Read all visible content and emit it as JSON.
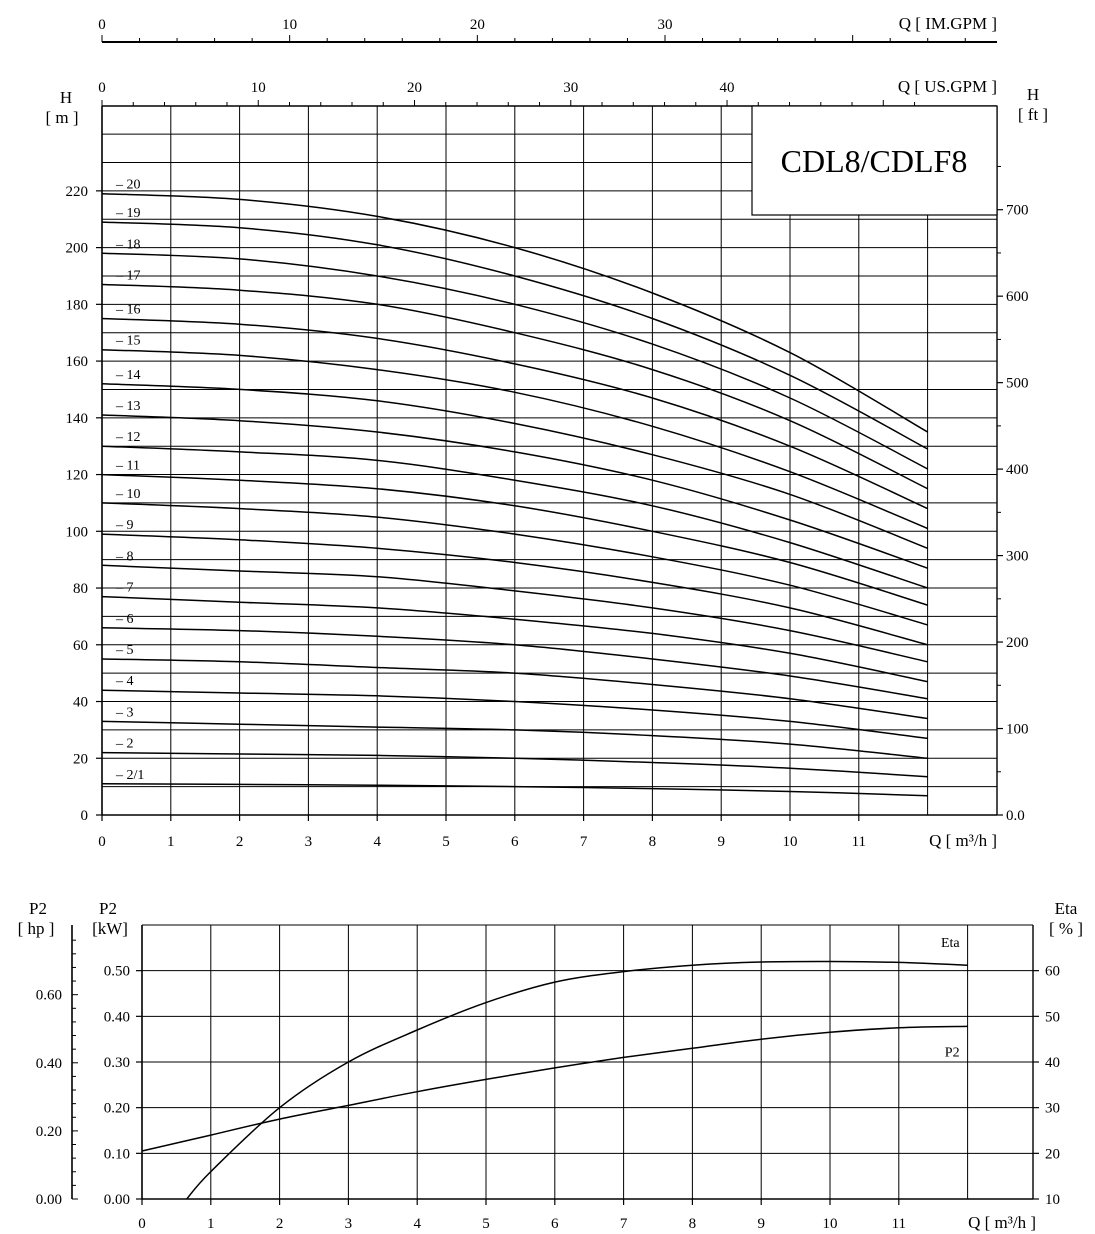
{
  "chart_data": [
    {
      "type": "line",
      "title": "CDL8/CDLF8",
      "xlabel": "Q [ m³/h ]",
      "x_ticks": [
        0,
        1,
        2,
        3,
        4,
        5,
        6,
        7,
        8,
        9,
        10,
        11
      ],
      "xlim": [
        0,
        13
      ],
      "ylabel_left": "H [ m ]",
      "ylabel_left_head": "H",
      "ylabel_left_unit": "[ m ]",
      "ylim_m": [
        0,
        245
      ],
      "y_ticks_m": [
        0,
        20,
        40,
        60,
        80,
        100,
        120,
        140,
        160,
        180,
        200,
        220
      ],
      "ylabel_right_head": "H",
      "ylabel_right_unit": "[ ft ]",
      "y_ticks_ft": [
        "0.0",
        "100",
        "200",
        "300",
        "400",
        "500",
        "600",
        "700"
      ],
      "top_axis_us": {
        "label": "Q [ US.GPM ]",
        "ticks": [
          "0",
          "10",
          "20",
          "30",
          "40"
        ]
      },
      "top_axis_im": {
        "label": "Q [ IM.GPM ]",
        "ticks": [
          "0",
          "10",
          "20",
          "30"
        ]
      },
      "grid": true,
      "series": [
        {
          "name": "20",
          "x": [
            0,
            2,
            4,
            6,
            8,
            10,
            12
          ],
          "y": [
            219,
            217,
            211,
            200,
            184,
            163,
            135
          ]
        },
        {
          "name": "19",
          "x": [
            0,
            2,
            4,
            6,
            8,
            10,
            12
          ],
          "y": [
            209,
            207,
            201,
            190,
            175,
            155,
            129
          ]
        },
        {
          "name": "18",
          "x": [
            0,
            2,
            4,
            6,
            8,
            10,
            12
          ],
          "y": [
            198,
            196,
            190,
            180,
            166,
            147,
            122
          ]
        },
        {
          "name": "17",
          "x": [
            0,
            2,
            4,
            6,
            8,
            10,
            12
          ],
          "y": [
            187,
            185,
            180,
            170,
            157,
            139,
            115
          ]
        },
        {
          "name": "16",
          "x": [
            0,
            2,
            4,
            6,
            8,
            10,
            12
          ],
          "y": [
            175,
            173,
            168,
            159,
            147,
            130,
            108
          ]
        },
        {
          "name": "15",
          "x": [
            0,
            2,
            4,
            6,
            8,
            10,
            12
          ],
          "y": [
            164,
            162,
            157,
            149,
            137,
            121,
            101
          ]
        },
        {
          "name": "14",
          "x": [
            0,
            2,
            4,
            6,
            8,
            10,
            12
          ],
          "y": [
            152,
            150,
            146,
            138,
            127,
            113,
            94
          ]
        },
        {
          "name": "13",
          "x": [
            0,
            2,
            4,
            6,
            8,
            10,
            12
          ],
          "y": [
            141,
            139,
            135,
            128,
            118,
            104,
            87
          ]
        },
        {
          "name": "12",
          "x": [
            0,
            2,
            4,
            6,
            8,
            10,
            12
          ],
          "y": [
            130,
            128,
            125,
            118,
            109,
            96,
            80
          ]
        },
        {
          "name": "11",
          "x": [
            0,
            2,
            4,
            6,
            8,
            10,
            12
          ],
          "y": [
            120,
            118,
            115,
            109,
            100,
            89,
            74
          ]
        },
        {
          "name": "10",
          "x": [
            0,
            2,
            4,
            6,
            8,
            10,
            12
          ],
          "y": [
            110,
            108,
            105,
            99,
            91,
            81,
            67
          ]
        },
        {
          "name": "9",
          "x": [
            0,
            2,
            4,
            6,
            8,
            10,
            12
          ],
          "y": [
            99,
            97,
            94,
            89,
            82,
            73,
            60
          ]
        },
        {
          "name": "8",
          "x": [
            0,
            2,
            4,
            6,
            8,
            10,
            12
          ],
          "y": [
            88,
            86,
            84,
            79,
            73,
            65,
            54
          ]
        },
        {
          "name": "7",
          "x": [
            0,
            2,
            4,
            6,
            8,
            10,
            12
          ],
          "y": [
            77,
            75,
            73,
            69,
            64,
            57,
            47
          ]
        },
        {
          "name": "6",
          "x": [
            0,
            2,
            4,
            6,
            8,
            10,
            12
          ],
          "y": [
            66,
            65,
            63,
            60,
            55,
            49,
            41
          ]
        },
        {
          "name": "5",
          "x": [
            0,
            2,
            4,
            6,
            8,
            10,
            12
          ],
          "y": [
            55,
            54,
            52,
            50,
            46,
            41,
            34
          ]
        },
        {
          "name": "4",
          "x": [
            0,
            2,
            4,
            6,
            8,
            10,
            12
          ],
          "y": [
            44,
            43,
            42,
            40,
            37,
            33,
            27
          ]
        },
        {
          "name": "3",
          "x": [
            0,
            2,
            4,
            6,
            8,
            10,
            12
          ],
          "y": [
            33,
            32,
            31,
            30,
            28,
            25,
            20
          ]
        },
        {
          "name": "2",
          "x": [
            0,
            2,
            4,
            6,
            8,
            10,
            12
          ],
          "y": [
            22,
            21.5,
            21,
            20,
            18.5,
            16.5,
            13.5
          ]
        },
        {
          "name": "2/1",
          "x": [
            0,
            2,
            4,
            6,
            8,
            10,
            12
          ],
          "y": [
            11,
            10.8,
            10.5,
            10,
            9.3,
            8.3,
            6.8
          ]
        }
      ]
    },
    {
      "type": "line",
      "xlabel": "Q [ m³/h ]",
      "x_ticks": [
        0,
        1,
        2,
        3,
        4,
        5,
        6,
        7,
        8,
        9,
        10,
        11
      ],
      "xlim": [
        0,
        12
      ],
      "ylabel_left_kw_head": "P2",
      "ylabel_left_kw_unit": "[kW]",
      "ylim_kw": [
        0,
        0.6
      ],
      "y_ticks_kw": [
        "0.00",
        "0.10",
        "0.20",
        "0.30",
        "0.40",
        "0.50"
      ],
      "ylabel_left_hp_head": "P2",
      "ylabel_left_hp_unit": "[ hp ]",
      "y_ticks_hp": [
        "0.00",
        "0.20",
        "0.40",
        "0.60"
      ],
      "ylabel_right_head": "Eta",
      "ylabel_right_unit": "[ % ]",
      "ylim_eta": [
        10,
        70
      ],
      "y_ticks_eta": [
        10,
        20,
        30,
        40,
        50,
        60
      ],
      "grid": true,
      "series": [
        {
          "name": "Eta",
          "axis": "eta",
          "x": [
            0.65,
            1,
            2,
            3,
            4,
            5,
            6,
            7,
            8,
            9,
            10,
            11,
            12
          ],
          "y": [
            10,
            16,
            30,
            40,
            47,
            53,
            57.5,
            59.8,
            61.2,
            61.9,
            62,
            61.8,
            61.2
          ]
        },
        {
          "name": "P2",
          "axis": "kw",
          "x": [
            0,
            1,
            2,
            3,
            4,
            5,
            6,
            7,
            8,
            9,
            10,
            11,
            12
          ],
          "y": [
            0.105,
            0.14,
            0.175,
            0.205,
            0.235,
            0.262,
            0.287,
            0.31,
            0.33,
            0.35,
            0.365,
            0.375,
            0.378
          ]
        }
      ]
    }
  ]
}
